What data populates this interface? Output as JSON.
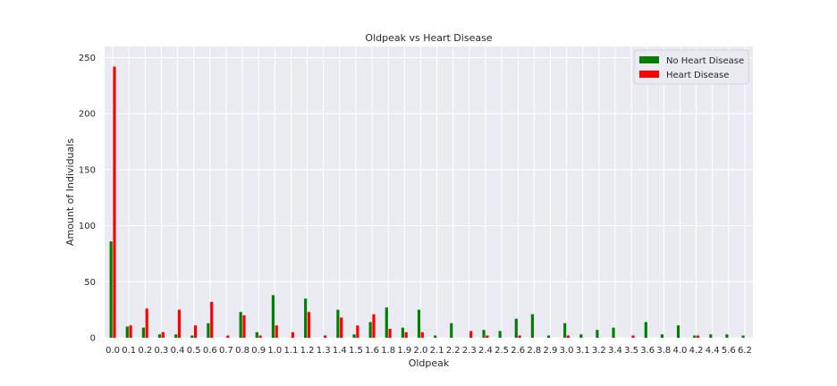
{
  "chart_data": {
    "type": "bar",
    "title": "Oldpeak vs Heart Disease",
    "xlabel": "Oldpeak",
    "ylabel": "Amount of Individuals",
    "ylim": [
      0,
      260
    ],
    "yticks": [
      0,
      50,
      100,
      150,
      200,
      250
    ],
    "grid": true,
    "legend_position": "top-right",
    "categories": [
      "0.0",
      "0.1",
      "0.2",
      "0.3",
      "0.4",
      "0.5",
      "0.6",
      "0.7",
      "0.8",
      "0.9",
      "1.0",
      "1.1",
      "1.2",
      "1.3",
      "1.4",
      "1.5",
      "1.6",
      "1.8",
      "1.9",
      "2.0",
      "2.1",
      "2.2",
      "2.3",
      "2.4",
      "2.5",
      "2.6",
      "2.8",
      "2.9",
      "3.0",
      "3.1",
      "3.2",
      "3.4",
      "3.5",
      "3.6",
      "3.8",
      "4.0",
      "4.2",
      "4.4",
      "5.6",
      "6.2"
    ],
    "series": [
      {
        "name": "No Heart Disease",
        "color": "#008000",
        "values": [
          86,
          10,
          9,
          3,
          3,
          2,
          13,
          0,
          23,
          5,
          38,
          0,
          35,
          0,
          25,
          3,
          14,
          27,
          9,
          25,
          2,
          13,
          0,
          7,
          6,
          17,
          21,
          2,
          13,
          3,
          7,
          9,
          0,
          14,
          3,
          11,
          2,
          3,
          3,
          2
        ]
      },
      {
        "name": "Heart Disease",
        "color": "#ff0000",
        "values": [
          242,
          11,
          26,
          5,
          25,
          11,
          32,
          2,
          20,
          2,
          11,
          5,
          23,
          2,
          18,
          11,
          21,
          8,
          5,
          5,
          0,
          0,
          6,
          2,
          0,
          2,
          0,
          0,
          2,
          0,
          0,
          0,
          2,
          0,
          0,
          0,
          2,
          0,
          0,
          0
        ]
      }
    ],
    "background": "#eaeaf2"
  }
}
